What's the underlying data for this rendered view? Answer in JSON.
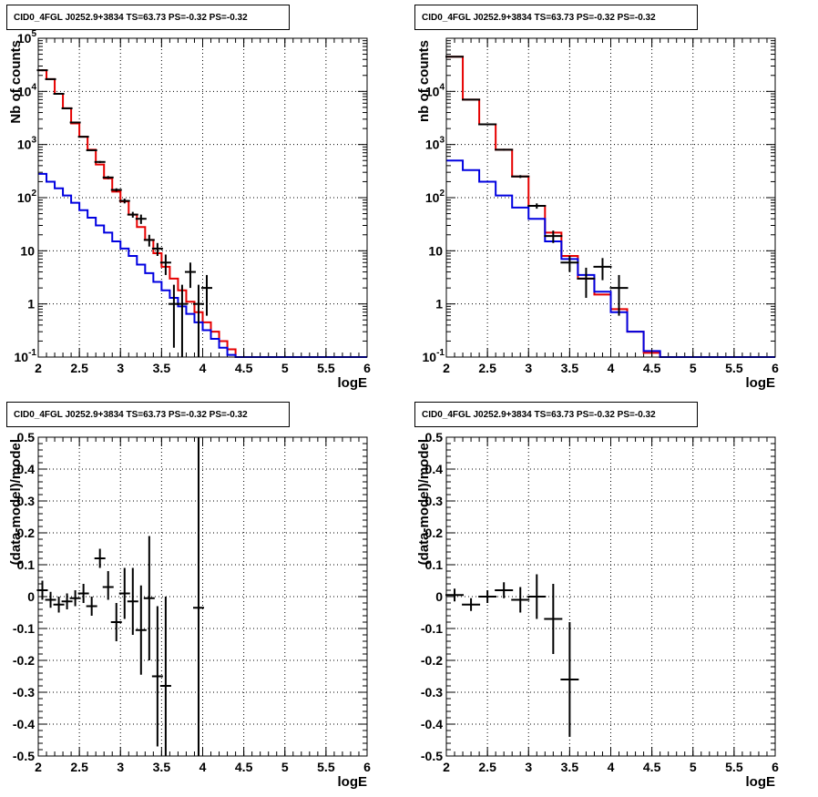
{
  "chart_data": [
    {
      "type": "line",
      "title": "CID0_4FGL J0252.9+3834 TS=63.73 PS=-0.32 PS=-0.32",
      "xlabel": "logE",
      "ylabel": "Nb of counts",
      "xlim": [
        2,
        6
      ],
      "ylim": [
        0.1,
        100000
      ],
      "yscale": "log",
      "grid": true,
      "x_ticks": [
        "2",
        "2.5",
        "3",
        "3.5",
        "4",
        "4.5",
        "5",
        "5.5",
        "6"
      ],
      "y_ticks": [
        "10^-1",
        "1",
        "10",
        "10^2",
        "10^3",
        "10^4",
        "10^5"
      ],
      "bin_edges": [
        2.0,
        2.1,
        2.2,
        2.3,
        2.4,
        2.5,
        2.6,
        2.7,
        2.8,
        2.9,
        3.0,
        3.1,
        3.2,
        3.3,
        3.4,
        3.5,
        3.6,
        3.7,
        3.8,
        3.9,
        4.0,
        4.1,
        4.2,
        4.3,
        4.4,
        4.5,
        4.6,
        4.7,
        4.8,
        4.9,
        5.0,
        5.1,
        5.2,
        5.3,
        5.4,
        5.5,
        5.6,
        5.7,
        5.8,
        5.9,
        6.0
      ],
      "series": [
        {
          "color": "#e60000",
          "values": [
            25000,
            17000,
            9000,
            4800,
            2500,
            1400,
            800,
            420,
            230,
            130,
            85,
            48,
            28,
            16,
            9,
            5,
            3,
            1.8,
            1.1,
            0.7,
            0.45,
            0.3,
            0.2,
            0.14,
            0.1,
            0.1,
            0.1,
            0.1,
            0.1,
            0.1,
            0.1,
            0.1,
            0.1,
            0.1,
            0.1,
            0.1,
            0.1,
            0.1,
            0.1,
            0.1
          ]
        },
        {
          "color": "#0000e0",
          "values": [
            280,
            200,
            150,
            110,
            80,
            58,
            42,
            30,
            22,
            15,
            11,
            8,
            5.5,
            3.8,
            2.6,
            1.8,
            1.3,
            0.9,
            0.65,
            0.45,
            0.32,
            0.22,
            0.15,
            0.11,
            0.1,
            0.1,
            0.1,
            0.1,
            0.1,
            0.1,
            0.1,
            0.1,
            0.1,
            0.1,
            0.1,
            0.1,
            0.1,
            0.1,
            0.1,
            0.1
          ]
        }
      ],
      "points": [
        {
          "x": 2.05,
          "y": 25000,
          "ylo": 24000,
          "yhi": 26000
        },
        {
          "x": 2.15,
          "y": 17000,
          "ylo": 16500,
          "yhi": 17500
        },
        {
          "x": 2.25,
          "y": 9000,
          "ylo": 8700,
          "yhi": 9300
        },
        {
          "x": 2.35,
          "y": 4800,
          "ylo": 4650,
          "yhi": 4950
        },
        {
          "x": 2.45,
          "y": 2600,
          "ylo": 2500,
          "yhi": 2700
        },
        {
          "x": 2.55,
          "y": 1400,
          "ylo": 1360,
          "yhi": 1440
        },
        {
          "x": 2.65,
          "y": 780,
          "ylo": 750,
          "yhi": 810
        },
        {
          "x": 2.75,
          "y": 470,
          "ylo": 450,
          "yhi": 490
        },
        {
          "x": 2.85,
          "y": 240,
          "ylo": 225,
          "yhi": 255
        },
        {
          "x": 2.95,
          "y": 140,
          "ylo": 130,
          "yhi": 150
        },
        {
          "x": 3.05,
          "y": 87,
          "ylo": 78,
          "yhi": 96
        },
        {
          "x": 3.15,
          "y": 48,
          "ylo": 42,
          "yhi": 54
        },
        {
          "x": 3.25,
          "y": 40,
          "ylo": 32,
          "yhi": 48
        },
        {
          "x": 3.35,
          "y": 16,
          "ylo": 12,
          "yhi": 20
        },
        {
          "x": 3.45,
          "y": 11,
          "ylo": 8,
          "yhi": 14
        },
        {
          "x": 3.55,
          "y": 6,
          "ylo": 3.5,
          "yhi": 8.5
        },
        {
          "x": 3.65,
          "y": 1,
          "ylo": 0.15,
          "yhi": 2.3
        },
        {
          "x": 3.75,
          "y": 1,
          "ylo": 0.1,
          "yhi": 2.3
        },
        {
          "x": 3.85,
          "y": 4,
          "ylo": 2,
          "yhi": 6
        },
        {
          "x": 3.95,
          "y": 1,
          "ylo": 0.1,
          "yhi": 2.3
        },
        {
          "x": 4.05,
          "y": 2,
          "ylo": 0.6,
          "yhi": 3.5
        }
      ]
    },
    {
      "type": "line",
      "title": "CID0_4FGL J0252.9+3834 TS=63.73 PS=-0.32 PS=-0.32",
      "xlabel": "logE",
      "ylabel": "nb of counts",
      "xlim": [
        2,
        6
      ],
      "ylim": [
        0.1,
        100000
      ],
      "yscale": "log",
      "grid": true,
      "x_ticks": [
        "2",
        "2.5",
        "3",
        "3.5",
        "4",
        "4.5",
        "5",
        "5.5",
        "6"
      ],
      "y_ticks": [
        "10^-1",
        "1",
        "10",
        "10^2",
        "10^3",
        "10^4"
      ],
      "bin_edges": [
        2.0,
        2.2,
        2.4,
        2.6,
        2.8,
        3.0,
        3.2,
        3.4,
        3.6,
        3.8,
        4.0,
        4.2,
        4.4,
        4.6,
        4.8,
        5.0,
        5.2,
        5.4,
        5.6,
        5.8,
        6.0
      ],
      "series": [
        {
          "color": "#e60000",
          "values": [
            45000,
            7000,
            2400,
            800,
            250,
            70,
            22,
            8,
            3,
            1.5,
            0.8,
            0.3,
            0.12,
            0.1,
            0.1,
            0.1,
            0.1,
            0.1,
            0.1,
            0.1
          ]
        },
        {
          "color": "#0000e0",
          "values": [
            500,
            330,
            200,
            110,
            65,
            40,
            15,
            7,
            3.5,
            1.7,
            0.7,
            0.3,
            0.13,
            0.1,
            0.1,
            0.1,
            0.1,
            0.1,
            0.1,
            0.1
          ]
        }
      ],
      "points": [
        {
          "x": 2.1,
          "y": 45000,
          "ylo": 44000,
          "yhi": 46000
        },
        {
          "x": 2.3,
          "y": 7000,
          "ylo": 6850,
          "yhi": 7150
        },
        {
          "x": 2.5,
          "y": 2400,
          "ylo": 2330,
          "yhi": 2470
        },
        {
          "x": 2.7,
          "y": 800,
          "ylo": 770,
          "yhi": 830
        },
        {
          "x": 2.9,
          "y": 250,
          "ylo": 235,
          "yhi": 265
        },
        {
          "x": 3.1,
          "y": 70,
          "ylo": 62,
          "yhi": 78
        },
        {
          "x": 3.3,
          "y": 19,
          "ylo": 14,
          "yhi": 24
        },
        {
          "x": 3.5,
          "y": 6,
          "ylo": 4,
          "yhi": 8
        },
        {
          "x": 3.7,
          "y": 3,
          "ylo": 1.3,
          "yhi": 4.8
        },
        {
          "x": 3.9,
          "y": 5,
          "ylo": 2.8,
          "yhi": 7.3
        },
        {
          "x": 4.1,
          "y": 2,
          "ylo": 0.6,
          "yhi": 3.5
        }
      ]
    },
    {
      "type": "scatter",
      "title": "CID0_4FGL J0252.9+3834 TS=63.73 PS=-0.32 PS=-0.32",
      "xlabel": "logE",
      "ylabel": "(data-model)/model",
      "xlim": [
        2,
        6
      ],
      "ylim": [
        -0.5,
        0.5
      ],
      "grid": true,
      "x_ticks": [
        "2",
        "2.5",
        "3",
        "3.5",
        "4",
        "4.5",
        "5",
        "5.5",
        "6"
      ],
      "y_ticks": [
        "-0.5",
        "-0.4",
        "-0.3",
        "-0.2",
        "-0.1",
        "0",
        "0.1",
        "0.2",
        "0.3",
        "0.4",
        "0.5"
      ],
      "points": [
        {
          "x": 2.05,
          "y": 0.02,
          "ylo": -0.01,
          "yhi": 0.05
        },
        {
          "x": 2.15,
          "y": -0.01,
          "ylo": -0.035,
          "yhi": 0.015
        },
        {
          "x": 2.25,
          "y": -0.025,
          "ylo": -0.05,
          "yhi": 0.0
        },
        {
          "x": 2.35,
          "y": -0.015,
          "ylo": -0.04,
          "yhi": 0.01
        },
        {
          "x": 2.45,
          "y": -0.005,
          "ylo": -0.03,
          "yhi": 0.02
        },
        {
          "x": 2.55,
          "y": 0.01,
          "ylo": -0.02,
          "yhi": 0.04
        },
        {
          "x": 2.65,
          "y": -0.03,
          "ylo": -0.06,
          "yhi": 0.0
        },
        {
          "x": 2.75,
          "y": 0.12,
          "ylo": 0.09,
          "yhi": 0.15
        },
        {
          "x": 2.85,
          "y": 0.03,
          "ylo": -0.01,
          "yhi": 0.08
        },
        {
          "x": 2.95,
          "y": -0.08,
          "ylo": -0.14,
          "yhi": -0.02
        },
        {
          "x": 3.05,
          "y": 0.01,
          "ylo": -0.07,
          "yhi": 0.09
        },
        {
          "x": 3.15,
          "y": -0.015,
          "ylo": -0.12,
          "yhi": 0.09
        },
        {
          "x": 3.25,
          "y": -0.105,
          "ylo": -0.245,
          "yhi": 0.035
        },
        {
          "x": 3.35,
          "y": -0.005,
          "ylo": -0.2,
          "yhi": 0.19
        },
        {
          "x": 3.45,
          "y": -0.25,
          "ylo": -0.47,
          "yhi": -0.03
        },
        {
          "x": 3.55,
          "y": -0.28,
          "ylo": -0.5,
          "yhi": 0.0
        },
        {
          "x": 3.95,
          "y": -0.035,
          "ylo": -0.5,
          "yhi": 0.5
        }
      ]
    },
    {
      "type": "scatter",
      "title": "CID0_4FGL J0252.9+3834 TS=63.73 PS=-0.32 PS=-0.32",
      "xlabel": "logE",
      "ylabel": "(data-model)/model",
      "xlim": [
        2,
        6
      ],
      "ylim": [
        -0.5,
        0.5
      ],
      "grid": true,
      "x_ticks": [
        "2",
        "2.5",
        "3",
        "3.5",
        "4",
        "4.5",
        "5",
        "5.5",
        "6"
      ],
      "y_ticks": [
        "-0.5",
        "-0.4",
        "-0.3",
        "-0.2",
        "-0.1",
        "0",
        "0.1",
        "0.2",
        "0.3",
        "0.4",
        "0.5"
      ],
      "points": [
        {
          "x": 2.1,
          "y": 0.005,
          "ylo": -0.015,
          "yhi": 0.025
        },
        {
          "x": 2.3,
          "y": -0.025,
          "ylo": -0.045,
          "yhi": -0.005
        },
        {
          "x": 2.5,
          "y": 0.0,
          "ylo": -0.02,
          "yhi": 0.02
        },
        {
          "x": 2.7,
          "y": 0.02,
          "ylo": -0.005,
          "yhi": 0.045
        },
        {
          "x": 2.9,
          "y": -0.01,
          "ylo": -0.05,
          "yhi": 0.03
        },
        {
          "x": 3.1,
          "y": 0.0,
          "ylo": -0.07,
          "yhi": 0.07
        },
        {
          "x": 3.3,
          "y": -0.07,
          "ylo": -0.18,
          "yhi": 0.04
        },
        {
          "x": 3.5,
          "y": -0.26,
          "ylo": -0.44,
          "yhi": -0.08
        }
      ]
    }
  ]
}
